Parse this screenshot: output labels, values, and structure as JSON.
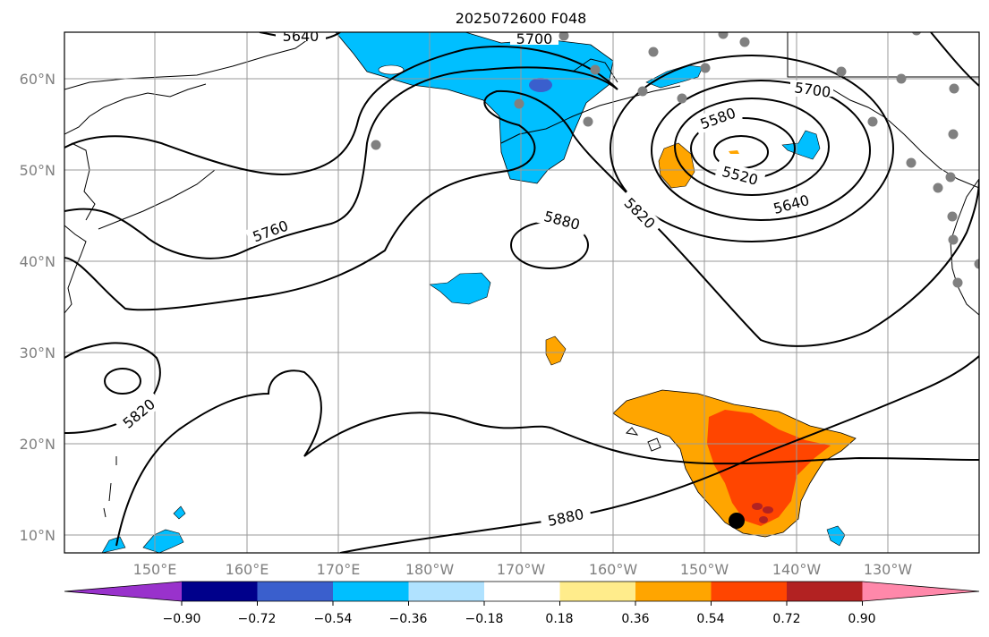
{
  "title": "2025072600 F048",
  "map": {
    "lat_ticks": [
      "60°N",
      "50°N",
      "40°N",
      "30°N",
      "20°N",
      "10°N"
    ],
    "lon_ticks": [
      "150°E",
      "160°E",
      "170°E",
      "180°W",
      "170°W",
      "160°W",
      "150°W",
      "140°W",
      "130°W"
    ],
    "grid": true,
    "contour_labels": [
      "5640",
      "5700",
      "5700",
      "5760",
      "5580",
      "5520",
      "5640",
      "5820",
      "5880",
      "5820",
      "5880"
    ]
  },
  "colorbar": {
    "ticks": [
      "−0.90",
      "−0.72",
      "−0.54",
      "−0.36",
      "−0.18",
      "0.18",
      "0.36",
      "0.54",
      "0.72",
      "0.90"
    ],
    "colors": [
      "#9932CC",
      "#00008B",
      "#3A5FCD",
      "#00BFFF",
      "#B0E2FF",
      "#FFFFFF",
      "#FFEC8B",
      "#FFA500",
      "#FF4500",
      "#B22222",
      "#FF88AA"
    ]
  }
}
